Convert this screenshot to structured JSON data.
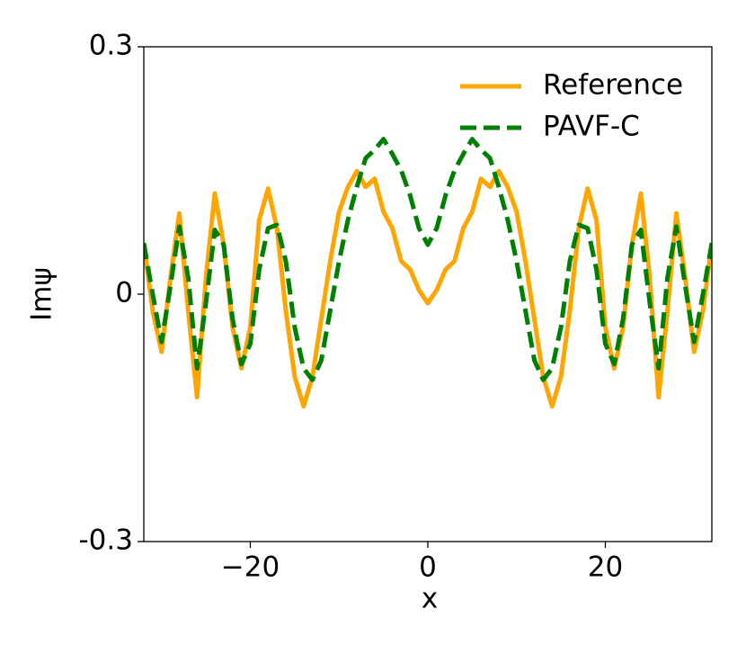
{
  "chart_data": {
    "type": "line",
    "xlabel": "x",
    "ylabel": "Imψ",
    "x": [
      -32,
      -31,
      -30,
      -29,
      -28,
      -27,
      -26,
      -25,
      -24,
      -23,
      -22,
      -21,
      -20,
      -19,
      -18,
      -17,
      -16,
      -15,
      -14,
      -13,
      -12,
      -11,
      -10,
      -9,
      -8,
      -7,
      -6,
      -5,
      -4,
      -3,
      -2,
      -1,
      0,
      1,
      2,
      3,
      4,
      5,
      6,
      7,
      8,
      9,
      10,
      11,
      12,
      13,
      14,
      15,
      16,
      17,
      18,
      19,
      20,
      21,
      22,
      23,
      24,
      25,
      26,
      27,
      28,
      29,
      30,
      31,
      32
    ],
    "series": [
      {
        "name": "Reference",
        "color": "#ffa500",
        "dash": false,
        "values": [
          0.062,
          -0.02,
          -0.07,
          0.02,
          0.098,
          -0.02,
          -0.125,
          0.02,
          0.122,
          0.06,
          -0.04,
          -0.09,
          -0.04,
          0.09,
          0.128,
          0.08,
          -0.02,
          -0.1,
          -0.136,
          -0.1,
          -0.03,
          0.04,
          0.1,
          0.13,
          0.149,
          0.13,
          0.14,
          0.1,
          0.08,
          0.04,
          0.03,
          0.005,
          -0.011,
          0.005,
          0.03,
          0.04,
          0.08,
          0.1,
          0.14,
          0.13,
          0.149,
          0.13,
          0.1,
          0.04,
          -0.03,
          -0.1,
          -0.136,
          -0.1,
          -0.02,
          0.08,
          0.128,
          0.09,
          -0.04,
          -0.09,
          -0.04,
          0.06,
          0.122,
          0.02,
          -0.125,
          -0.02,
          0.098,
          0.02,
          -0.07,
          -0.02,
          0.062
        ]
      },
      {
        "name": "PAVF-C",
        "color": "#008000",
        "dash": true,
        "values": [
          0.062,
          0.0,
          -0.058,
          0.01,
          0.082,
          0.02,
          -0.09,
          -0.01,
          0.078,
          0.06,
          -0.03,
          -0.085,
          -0.06,
          0.03,
          0.08,
          0.084,
          0.04,
          -0.04,
          -0.09,
          -0.104,
          -0.08,
          -0.02,
          0.04,
          0.09,
          0.13,
          0.165,
          0.175,
          0.188,
          0.17,
          0.15,
          0.12,
          0.08,
          0.06,
          0.08,
          0.12,
          0.15,
          0.17,
          0.188,
          0.175,
          0.165,
          0.13,
          0.09,
          0.04,
          -0.02,
          -0.08,
          -0.104,
          -0.09,
          -0.04,
          0.04,
          0.084,
          0.08,
          0.03,
          -0.06,
          -0.085,
          -0.03,
          0.06,
          0.078,
          -0.01,
          -0.09,
          0.02,
          0.082,
          0.01,
          -0.058,
          0.0,
          0.062
        ]
      }
    ],
    "xlim": [
      -32,
      32
    ],
    "xticks": [
      {
        "value": -20,
        "label": "−20"
      },
      0,
      20
    ],
    "ylim": [
      -0.3,
      0.3
    ],
    "yticks": [
      -0.3,
      0,
      0.3
    ],
    "legend": "upper right",
    "grid": false
  }
}
